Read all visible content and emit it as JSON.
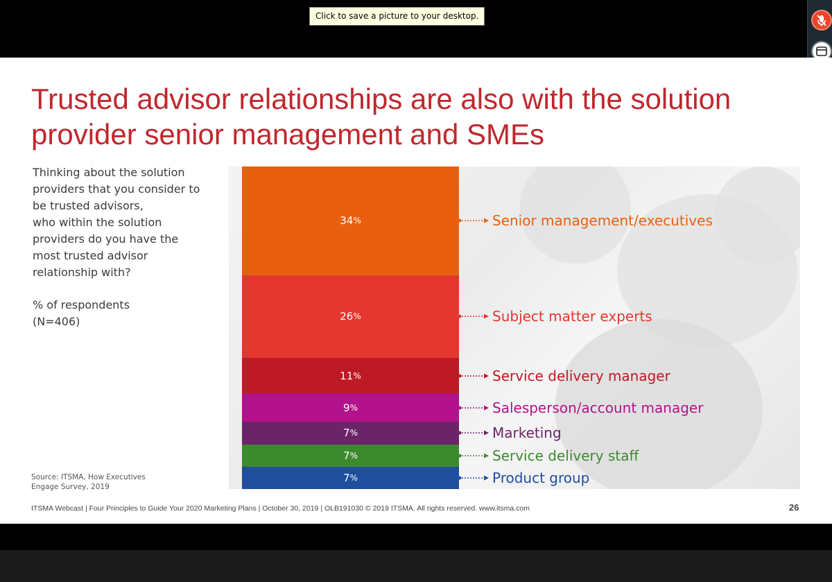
{
  "tooltip": {
    "text": "Click to save a picture to your desktop."
  },
  "toolbar": {
    "icons": [
      "mute-mic-icon",
      "window-icon",
      "raise-hand-icon"
    ],
    "colors": {
      "mic": "#e8452c",
      "hand": "#1a9a3a"
    }
  },
  "slide": {
    "title": "Trusted advisor relationships are also with the solution provider senior management and SMEs",
    "question_lines": [
      "Thinking about the solution",
      "providers that you consider to",
      "be trusted advisors,",
      "who within the solution",
      "providers do you have the",
      "most trusted advisor",
      "relationship with?"
    ],
    "respondents_line1": "% of respondents",
    "respondents_line2": "(N=406)",
    "source_line1": "Source: ITSMA, How Executives",
    "source_line2": "Engage Survey, 2019",
    "footer": "ITSMA Webcast | Four Principles to Guide Your 2020 Marketing Plans | October 30, 2019 | OLB191030 © 2019 ITSMA. All rights reserved.  www.itsma.com",
    "page_number": "26"
  },
  "chart_data": {
    "type": "bar",
    "stacked": true,
    "categories": [
      "Senior management/executives",
      "Subject matter experts",
      "Service delivery manager",
      "Salesperson/account manager",
      "Marketing",
      "Service delivery staff",
      "Product group"
    ],
    "values": [
      34,
      26,
      11,
      9,
      7,
      7,
      7
    ],
    "value_labels": [
      "34",
      "26",
      "11",
      "9",
      "7",
      "7",
      "7"
    ],
    "unit": "%",
    "colors": [
      "#e8600f",
      "#e5362f",
      "#be1a26",
      "#b3128c",
      "#6c2469",
      "#3c8a2e",
      "#1e4e9c"
    ],
    "label_colors": [
      "#e8600f",
      "#e5362f",
      "#be1a26",
      "#b3128c",
      "#6c2469",
      "#3c8a2e",
      "#1e4e9c"
    ]
  }
}
